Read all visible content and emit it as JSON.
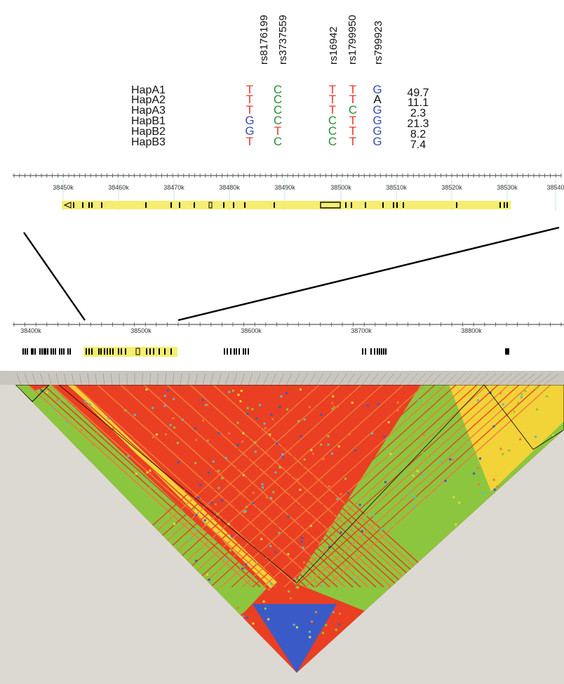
{
  "snps": [
    "rs8176199",
    "rs3737559",
    "rs16942",
    "rs1799950",
    "rs799923"
  ],
  "haplotypes": [
    {
      "name": "HapA1",
      "alleles": [
        "T",
        "C",
        "T",
        "T",
        "G"
      ],
      "frequency": "49.7"
    },
    {
      "name": "HapA2",
      "alleles": [
        "T",
        "C",
        "T",
        "T",
        "A"
      ],
      "frequency": "11.1"
    },
    {
      "name": "HapA3",
      "alleles": [
        "T",
        "C",
        "T",
        "C",
        "G"
      ],
      "frequency": "2.3"
    },
    {
      "name": "HapB1",
      "alleles": [
        "G",
        "C",
        "C",
        "T",
        "G"
      ],
      "frequency": "21.3"
    },
    {
      "name": "HapB2",
      "alleles": [
        "G",
        "T",
        "C",
        "T",
        "G"
      ],
      "frequency": "8.2"
    },
    {
      "name": "HapB3",
      "alleles": [
        "T",
        "C",
        "C",
        "T",
        "G"
      ],
      "frequency": "7.4"
    }
  ],
  "allele_colors": {
    "T": "#e8372a",
    "C": "#2e8b3a",
    "G": "#3a4fb0",
    "A": "#111111"
  },
  "zoom_axis": {
    "ticks": [
      "38450k",
      "38460k",
      "38470k",
      "38480k",
      "38490k",
      "38500k",
      "38510k",
      "38520k",
      "38530k",
      "38540"
    ]
  },
  "wide_axis": {
    "ticks": [
      "38400k",
      "38500k",
      "38600k",
      "38700k",
      "38800k"
    ]
  },
  "gene_color": "#f5ee6e",
  "ld_colors": {
    "strong": "#ea3f22",
    "high": "#f07a3a",
    "medium": "#f2d338",
    "weak": "#8cc63f",
    "low": "#3a5bc7",
    "none": "#5fb8c9",
    "background": "#dcd9d3",
    "strip": "#c9c6bf"
  }
}
